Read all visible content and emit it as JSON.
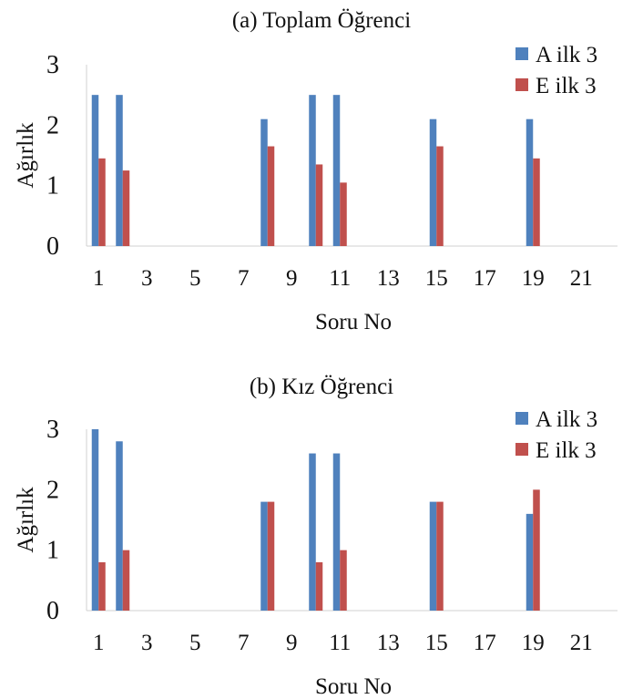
{
  "chart_data": [
    {
      "type": "bar",
      "title": "(a) Toplam Öğrenci",
      "xlabel": "Soru No",
      "ylabel": "Ağırlık",
      "ylim": [
        0,
        3
      ],
      "yticks": [
        "0",
        "1",
        "2",
        "3"
      ],
      "categories": [
        "1",
        "2",
        "3",
        "4",
        "5",
        "6",
        "7",
        "8",
        "9",
        "10",
        "11",
        "12",
        "13",
        "14",
        "15",
        "16",
        "17",
        "18",
        "19",
        "20",
        "21",
        "22"
      ],
      "xtick_labels": [
        "1",
        "3",
        "5",
        "7",
        "9",
        "11",
        "13",
        "15",
        "17",
        "19",
        "21"
      ],
      "grid": false,
      "legend_position": "top-right",
      "series": [
        {
          "name": "A ilk 3",
          "color": "#4f81bd",
          "values": [
            2.5,
            2.5,
            0,
            0,
            0,
            0,
            0,
            2.1,
            0,
            2.5,
            2.5,
            0,
            0,
            0,
            2.1,
            0,
            0,
            0,
            2.1,
            0,
            0,
            0
          ]
        },
        {
          "name": "E ilk 3",
          "color": "#c0504d",
          "values": [
            1.45,
            1.25,
            0,
            0,
            0,
            0,
            0,
            1.65,
            0,
            1.35,
            1.05,
            0,
            0,
            0,
            1.65,
            0,
            0,
            0,
            1.45,
            0,
            0,
            0
          ]
        }
      ]
    },
    {
      "type": "bar",
      "title": "(b) Kız Öğrenci",
      "xlabel": "Soru No",
      "ylabel": "Ağırlık",
      "ylim": [
        0,
        3
      ],
      "yticks": [
        "0",
        "1",
        "2",
        "3"
      ],
      "categories": [
        "1",
        "2",
        "3",
        "4",
        "5",
        "6",
        "7",
        "8",
        "9",
        "10",
        "11",
        "12",
        "13",
        "14",
        "15",
        "16",
        "17",
        "18",
        "19",
        "20",
        "21",
        "22"
      ],
      "xtick_labels": [
        "1",
        "3",
        "5",
        "7",
        "9",
        "11",
        "13",
        "15",
        "17",
        "19",
        "21"
      ],
      "grid": false,
      "legend_position": "top-right",
      "series": [
        {
          "name": "A ilk 3",
          "color": "#4f81bd",
          "values": [
            3.0,
            2.8,
            0,
            0,
            0,
            0,
            0,
            1.8,
            0,
            2.6,
            2.6,
            0,
            0,
            0,
            1.8,
            0,
            0,
            0,
            1.6,
            0,
            0,
            0
          ]
        },
        {
          "name": "E ilk 3",
          "color": "#c0504d",
          "values": [
            0.8,
            1.0,
            0,
            0,
            0,
            0,
            0,
            1.8,
            0,
            0.8,
            1.0,
            0,
            0,
            0,
            1.8,
            0,
            0,
            0,
            2.0,
            0,
            0,
            0
          ]
        }
      ]
    }
  ]
}
